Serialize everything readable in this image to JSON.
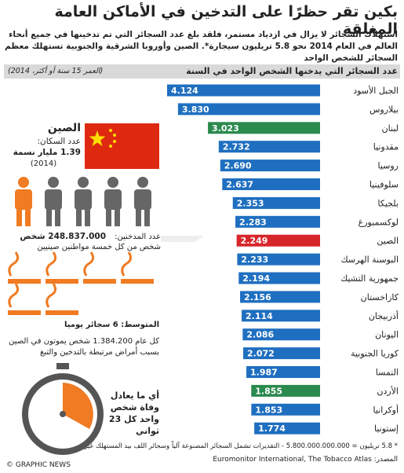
{
  "header": {
    "title": "بكين تقر حظرًا على التدخين في الأماكن العامة المغلقة",
    "intro": "استهلاك السجائر لا يزال في ازدياد مستمر، فلقد بلغ عدد السجائر التي تم تدخينها في جميع أنحاء العالم في العام 2014 نحو 5.8 تريليون سيجارة*. الصين وأوروبا الشرقية والجنوبية تستهلك معظم السجائر للشخص الواحد"
  },
  "chart_data": {
    "type": "bar",
    "orientation": "horizontal",
    "title": "عدد السجائر التي يدخنها الشخص الواحد في السنة",
    "subtitle": "(العمر 15 سنة أو أكثر، 2014)",
    "categories": [
      "الجبل الأسود",
      "بيلاروس",
      "لبنان",
      "مقدونيا",
      "روسيا",
      "سلوفينيا",
      "بلجيكا",
      "لوكسمبورغ",
      "الصين",
      "البوسنة الهرسك",
      "جمهورية التشيك",
      "كازاخستان",
      "أذربيجان",
      "اليونان",
      "كوريا الجنوبية",
      "النمسا",
      "الأردن",
      "أوكرانيا",
      "إستونيا"
    ],
    "values": [
      4.124,
      3.83,
      3.023,
      2.732,
      2.69,
      2.637,
      2.353,
      2.283,
      2.249,
      2.233,
      2.194,
      2.156,
      2.114,
      2.086,
      2.072,
      1.987,
      1.855,
      1.853,
      1.774
    ],
    "value_labels": [
      "4.124",
      "3.830",
      "3.023",
      "2.732",
      "2.690",
      "2.637",
      "2.353",
      "2.283",
      "2.249",
      "2.233",
      "2.194",
      "2.156",
      "2.114",
      "2.086",
      "2.072",
      "1.987",
      "1.855",
      "1.853",
      "1.774"
    ],
    "colors": [
      "#1f6fc0",
      "#1f6fc0",
      "#2b8a4e",
      "#1f6fc0",
      "#1f6fc0",
      "#1f6fc0",
      "#1f6fc0",
      "#1f6fc0",
      "#d7262a",
      "#1f6fc0",
      "#1f6fc0",
      "#1f6fc0",
      "#1f6fc0",
      "#1f6fc0",
      "#1f6fc0",
      "#1f6fc0",
      "#2b8a4e",
      "#1f6fc0",
      "#1f6fc0"
    ]
  },
  "panel": {
    "country": "الصين",
    "population_label": "عدد السكان:",
    "population": "1.39 مليار نسمة",
    "population_year": "(2014)",
    "smokers_label": "عدد المدخنين:",
    "smokers": "248.837.000 شخص",
    "smokers_ratio": "شخص من كل خمسة مواطنين صينيين",
    "average": "المتوسط: 6 سجائر يوميا",
    "deaths": "كل عام 1.384.200 شخص يموتون في الصين بسبب أمراض مرتبطة بالتدخين والتبغ",
    "deaths_rate": "أي ما يعادل وفاة شخص واحد كل 23 ثواني"
  },
  "footer": {
    "note": "* 5.8 تريليون = 5.800.000.000.000 - التقديرات تشمل السجائر المصنوعة آلياً وسجائر اللف بيد المستهلك غير المهربة",
    "source": "المصدر: Euromonitor International, The Tobacco Atlas",
    "credit": "© GRAPHIC NEWS"
  }
}
